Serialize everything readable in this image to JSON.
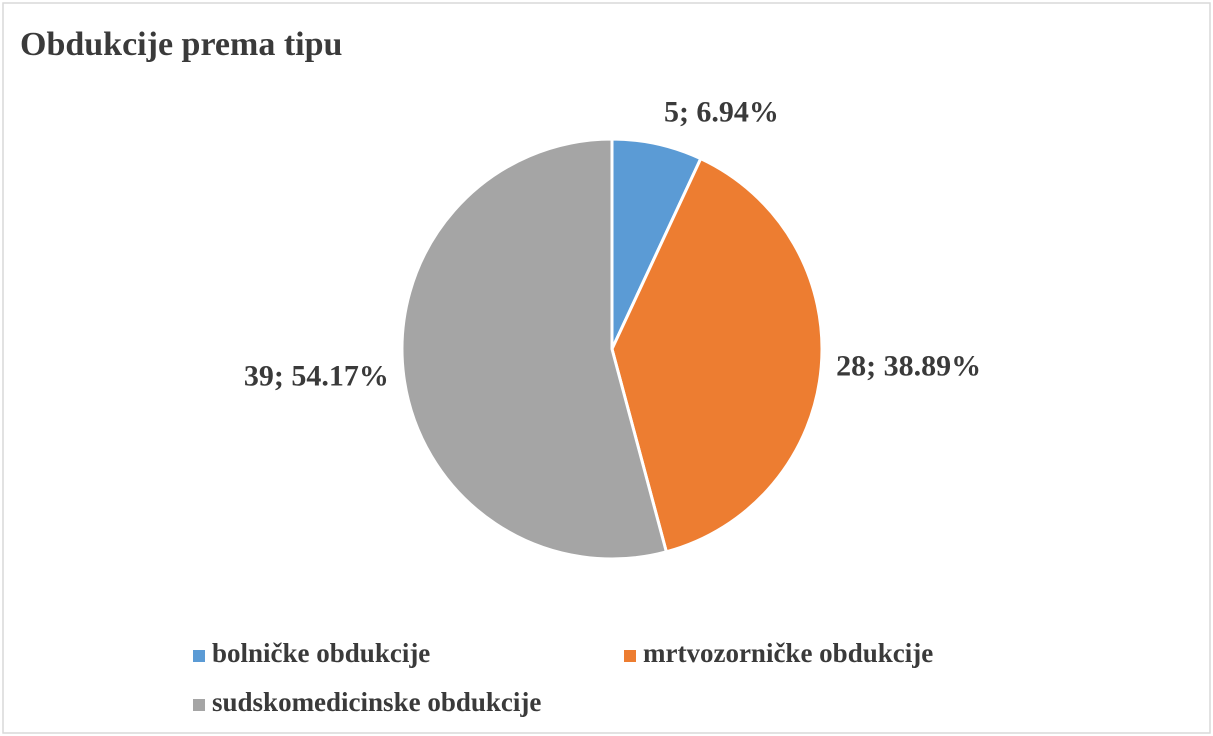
{
  "chart_data": {
    "type": "pie",
    "title": "Obdukcije prema tipu",
    "categories": [
      "bolničke obdukcije",
      "mrtvozorničke obdukcije",
      "sudskomedicinske obdukcije"
    ],
    "values": [
      5,
      28,
      39
    ],
    "value_labels": [
      "5; 6.94%",
      "28; 38.89%",
      "39; 54.17%"
    ],
    "colors": [
      "#5b9bd5",
      "#ed7d31",
      "#a5a5a5"
    ],
    "legend": "bottom"
  }
}
